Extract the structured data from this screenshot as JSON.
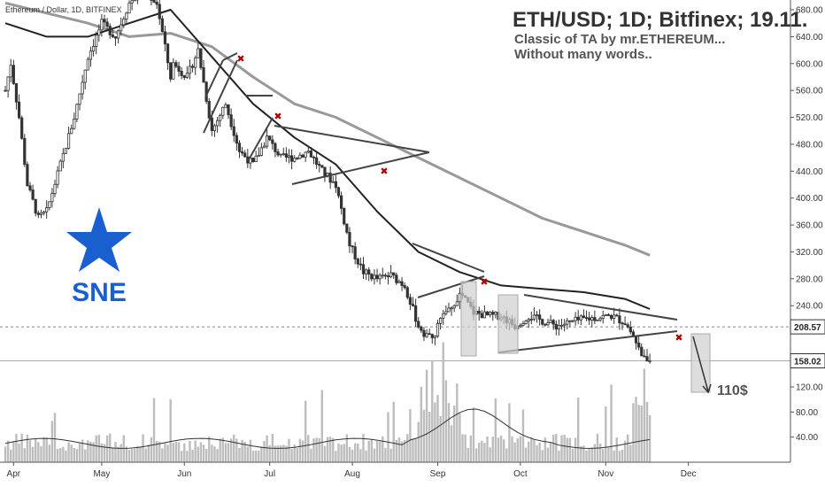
{
  "header": {
    "symbol_line": "Ethereum / Dollar, 1D, BITFINEX",
    "title": "ETH/USD; 1D; Bitfinex; 19.11.",
    "subtitle_1": "Classic of TA by mr.ETHEREUM...",
    "subtitle_2": "Without many words.."
  },
  "logo": {
    "text": "SNE",
    "color": "#1a5fd0"
  },
  "annotation": {
    "target_label": "110$"
  },
  "colors": {
    "candles": "#333333",
    "ma_fast": "#222222",
    "ma_slow": "#999999",
    "volume": "#bdbdbd",
    "marker": "#b00000"
  },
  "chart_data": {
    "type": "line",
    "price_axis": {
      "ticks": [
        680,
        640,
        600,
        560,
        520,
        480,
        440,
        400,
        360,
        320,
        280,
        240,
        200,
        160
      ],
      "tick_labels": [
        "680.00",
        "640.00",
        "600.00",
        "560.00",
        "520.00",
        "480.00",
        "440.00",
        "400.00",
        "360.00",
        "320.00",
        "280.00",
        "240.00"
      ]
    },
    "price_markers": [
      {
        "label": "208.57",
        "value": 208.57
      },
      {
        "label": "158.02",
        "value": 158.02
      }
    ],
    "volume_axis": {
      "ticks": [
        120,
        80,
        40
      ],
      "tick_labels": [
        "120.00",
        "80.00",
        "40.00"
      ]
    },
    "time_axis": {
      "labels": [
        "Apr",
        "May",
        "Jun",
        "Jul",
        "Aug",
        "Sep",
        "Oct",
        "Nov",
        "Dec"
      ]
    },
    "price_series": {
      "name": "",
      "t": [
        0,
        2,
        5,
        8,
        12,
        15,
        20,
        25,
        30,
        35,
        40,
        45,
        50,
        55,
        60,
        61,
        66,
        70,
        75,
        80,
        85,
        90,
        95,
        100,
        105,
        110,
        115,
        120,
        125,
        130,
        135,
        140,
        145,
        150,
        152,
        155,
        158,
        162,
        165,
        170,
        175,
        180,
        185,
        190,
        200,
        210,
        220,
        225,
        228,
        230,
        232,
        234
      ],
      "close": [
        560,
        600,
        520,
        420,
        370,
        380,
        450,
        520,
        610,
        660,
        640,
        690,
        710,
        690,
        580,
        600,
        580,
        620,
        500,
        540,
        470,
        450,
        490,
        460,
        460,
        470,
        440,
        420,
        330,
        290,
        280,
        285,
        270,
        210,
        200,
        190,
        220,
        235,
        260,
        230,
        225,
        225,
        210,
        225,
        210,
        220,
        225,
        215,
        195,
        180,
        160,
        158
      ]
    },
    "ma_fast": {
      "name": "",
      "t": [
        0,
        15,
        30,
        45,
        60,
        75,
        90,
        105,
        120,
        135,
        150,
        165,
        180,
        195,
        210,
        225,
        234
      ],
      "values": [
        660,
        640,
        640,
        660,
        680,
        610,
        540,
        490,
        450,
        380,
        320,
        290,
        270,
        265,
        260,
        250,
        235
      ]
    },
    "ma_slow": {
      "name": "",
      "t": [
        0,
        15,
        30,
        45,
        60,
        75,
        90,
        105,
        120,
        135,
        150,
        165,
        180,
        195,
        210,
        225,
        234
      ],
      "values": [
        690,
        675,
        660,
        640,
        645,
        625,
        580,
        540,
        520,
        490,
        460,
        430,
        400,
        370,
        350,
        330,
        315
      ]
    }
  }
}
